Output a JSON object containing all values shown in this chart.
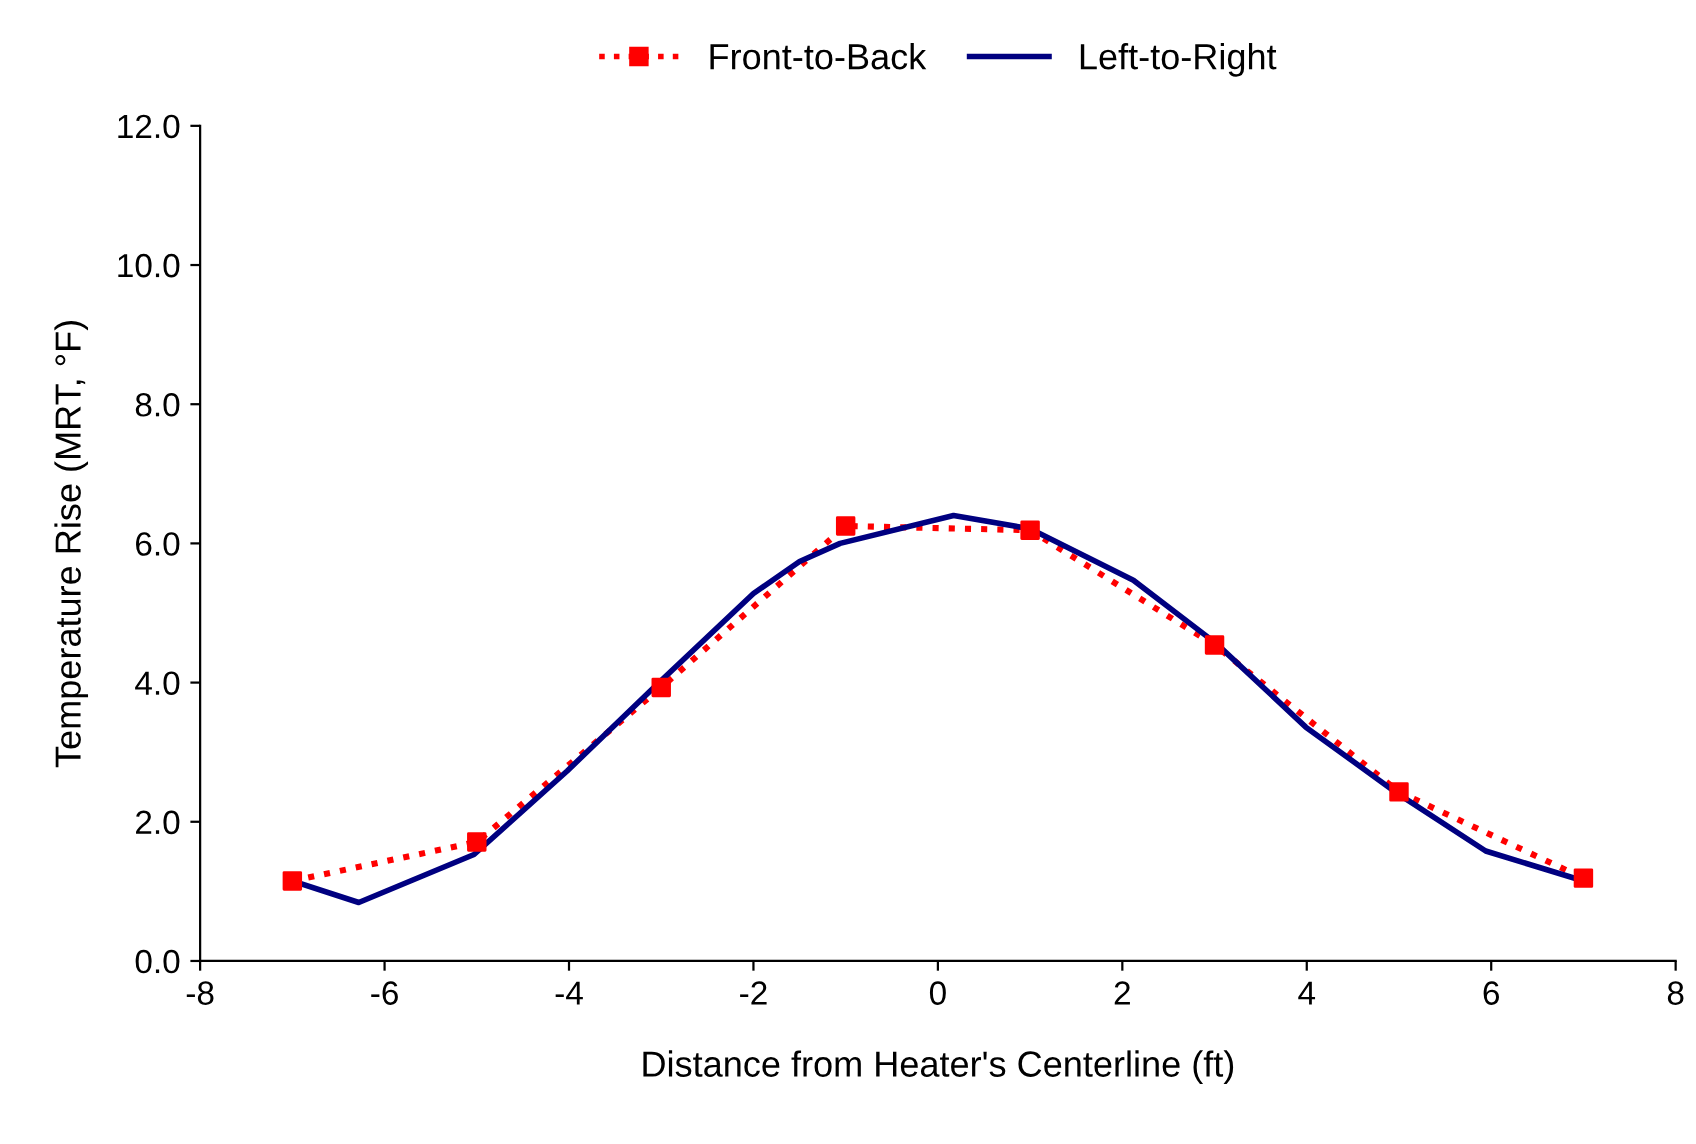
{
  "chart_data": {
    "type": "line",
    "xlabel": "Distance from Heater's Centerline (ft)",
    "ylabel": "Temperature Rise (MRT, °F)",
    "xlim": [
      -8,
      8
    ],
    "xticks": [
      -8,
      -6,
      -4,
      -2,
      0,
      2,
      4,
      6,
      8
    ],
    "ylim": [
      0,
      12
    ],
    "yticks": [
      {
        "value": 0,
        "label": "0.0"
      },
      {
        "value": 2,
        "label": "2.0"
      },
      {
        "value": 4,
        "label": "4.0"
      },
      {
        "value": 6,
        "label": "6.0"
      },
      {
        "value": 8,
        "label": "8.0"
      },
      {
        "value": 10,
        "label": "10.0"
      },
      {
        "value": 12,
        "label": "12.0"
      }
    ],
    "grid": false,
    "legend": "top",
    "series": [
      {
        "name": "Front-to-Back",
        "color": "#ff0000",
        "marker": "square",
        "line_style": "dotted",
        "x": [
          -7,
          -5,
          -3,
          -1,
          1,
          3,
          5,
          7
        ],
        "values": [
          1.15,
          1.71,
          3.93,
          6.25,
          6.19,
          4.54,
          2.43,
          1.19
        ]
      },
      {
        "name": "Left-to-Right",
        "color": "#000080",
        "marker": "none",
        "line_style": "solid",
        "x": [
          -7,
          -6.28,
          -5.03,
          -4.02,
          -3.08,
          -2.0,
          -1.5,
          -1.06,
          0.17,
          1.0,
          2.12,
          3.02,
          3.99,
          4.99,
          5.94,
          7.0
        ],
        "values": [
          1.15,
          0.84,
          1.53,
          2.73,
          3.93,
          5.28,
          5.74,
          6.0,
          6.4,
          6.21,
          5.47,
          4.56,
          3.36,
          2.4,
          1.58,
          1.15
        ]
      }
    ]
  }
}
